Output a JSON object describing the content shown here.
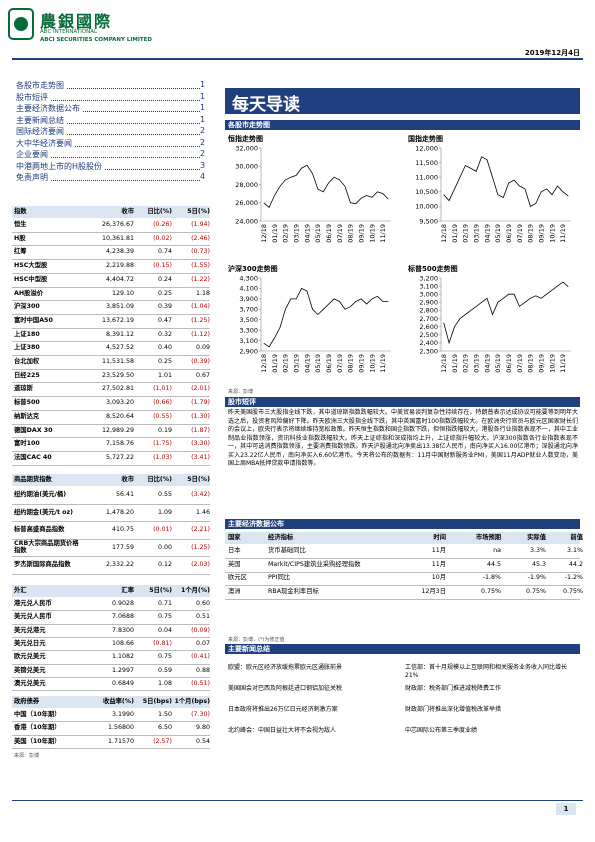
{
  "header": {
    "logo_cn": "農銀國際",
    "logo_en1": "ABC INTERNATIONAL",
    "logo_en2": "ABCI SECURITIES COMPANY LIMITED",
    "date": "2019年12月4日"
  },
  "toc": [
    {
      "title": "各股市走势图",
      "page": 1
    },
    {
      "title": "股市短评",
      "page": 1
    },
    {
      "title": "主要经济数据公布",
      "page": 1
    },
    {
      "title": "主要新闻总结",
      "page": 1
    },
    {
      "title": "国际经济要闻",
      "page": 2
    },
    {
      "title": "大中华经济要闻",
      "page": 2
    },
    {
      "title": "企业要闻",
      "page": 2
    },
    {
      "title": "中港两地上市的H股股份",
      "page": 3
    },
    {
      "title": "免责声明",
      "page": 4
    }
  ],
  "banner": "每天导读",
  "sections": {
    "charts": "各股市走势图",
    "comment": "股市短评",
    "econ": "主要经济数据公布",
    "news": "主要新闻总结"
  },
  "chart_source": "来源：彭博",
  "chart_data": [
    {
      "type": "line",
      "title": "恒指走势图",
      "categories": [
        "12/18",
        null,
        "01/19",
        null,
        "02/19",
        null,
        "03/19",
        null,
        "04/19",
        null,
        "05/19",
        null,
        "06/19",
        null,
        "07/19",
        null,
        "08/19",
        null,
        "09/19",
        null,
        "10/19",
        null,
        "11/19",
        null
      ],
      "values": [
        26000,
        25500,
        26800,
        27800,
        28500,
        28800,
        29000,
        29800,
        30100,
        29200,
        27500,
        27200,
        28200,
        28800,
        28500,
        27800,
        26000,
        25900,
        26500,
        26800,
        26600,
        27200,
        27000,
        26400
      ],
      "color": "#000000",
      "ylim": [
        24000,
        32000
      ],
      "yticks": [
        {
          "value": 24000,
          "label": "24,000"
        },
        {
          "value": 26000,
          "label": "26,000"
        },
        {
          "value": 28000,
          "label": "28,000"
        },
        {
          "value": 30000,
          "label": "30,000"
        },
        {
          "value": 32000,
          "label": "32,000"
        }
      ]
    },
    {
      "type": "line",
      "title": "国指走势图",
      "categories": [
        "12/18",
        null,
        "01/19",
        null,
        "02/19",
        null,
        "03/19",
        null,
        "04/19",
        null,
        "05/19",
        null,
        "06/19",
        null,
        "07/19",
        null,
        "08/19",
        null,
        "09/19",
        null,
        "10/19",
        null,
        "11/19",
        null
      ],
      "values": [
        10400,
        10200,
        10600,
        11000,
        11400,
        11300,
        11200,
        11700,
        11600,
        11000,
        10400,
        10300,
        10800,
        10900,
        10700,
        10600,
        10000,
        10100,
        10500,
        10600,
        10400,
        10700,
        10500,
        10360
      ],
      "color": "#000000",
      "ylim": [
        9500,
        12000
      ],
      "yticks": [
        {
          "value": 9500,
          "label": "9,500"
        },
        {
          "value": 10000,
          "label": "10,000"
        },
        {
          "value": 10500,
          "label": "10,500"
        },
        {
          "value": 11000,
          "label": "11,000"
        },
        {
          "value": 11500,
          "label": "11,500"
        },
        {
          "value": 12000,
          "label": "12,000"
        }
      ]
    },
    {
      "type": "line",
      "title": "沪深300走势图",
      "categories": [
        "12/18",
        null,
        "01/19",
        null,
        "02/19",
        null,
        "03/19",
        null,
        "04/19",
        null,
        "05/19",
        null,
        "06/19",
        null,
        "07/19",
        null,
        "08/19",
        null,
        "09/19",
        null,
        "10/19",
        null,
        "11/19",
        null
      ],
      "values": [
        3050,
        2980,
        3150,
        3350,
        3700,
        3900,
        3900,
        4100,
        4050,
        3700,
        3600,
        3700,
        3800,
        3900,
        3850,
        3700,
        3750,
        3850,
        3900,
        3800,
        3900,
        3950,
        3850,
        3850
      ],
      "color": "#000000",
      "ylim": [
        2900,
        4300
      ],
      "yticks": [
        {
          "value": 2900,
          "label": "2,900"
        },
        {
          "value": 3100,
          "label": "3,100"
        },
        {
          "value": 3300,
          "label": "3,300"
        },
        {
          "value": 3500,
          "label": "3,500"
        },
        {
          "value": 3700,
          "label": "3,700"
        },
        {
          "value": 3900,
          "label": "3,900"
        },
        {
          "value": 4100,
          "label": "4,100"
        },
        {
          "value": 4300,
          "label": "4,300"
        }
      ]
    },
    {
      "type": "line",
      "title": "标普500走势图",
      "categories": [
        "12/18",
        null,
        "01/19",
        null,
        "02/19",
        null,
        "03/19",
        null,
        "04/19",
        null,
        "05/19",
        null,
        "06/19",
        null,
        "07/19",
        null,
        "08/19",
        null,
        "09/19",
        null,
        "10/19",
        null,
        "11/19",
        null
      ],
      "values": [
        2650,
        2400,
        2600,
        2700,
        2750,
        2800,
        2850,
        2900,
        2950,
        2750,
        2900,
        2950,
        3000,
        3000,
        2850,
        2900,
        2950,
        2980,
        2950,
        3000,
        3050,
        3100,
        3150,
        3093
      ],
      "color": "#000000",
      "ylim": [
        2300,
        3200
      ],
      "yticks": [
        {
          "value": 2300,
          "label": "2,300"
        },
        {
          "value": 2400,
          "label": "2,400"
        },
        {
          "value": 2500,
          "label": "2,500"
        },
        {
          "value": 2600,
          "label": "2,600"
        },
        {
          "value": 2700,
          "label": "2,700"
        },
        {
          "value": 2800,
          "label": "2,800"
        },
        {
          "value": 2900,
          "label": "2,900"
        },
        {
          "value": 3000,
          "label": "3,000"
        },
        {
          "value": 3100,
          "label": "3,100"
        },
        {
          "value": 3200,
          "label": "3,200"
        }
      ]
    }
  ],
  "comment_text": "昨天美国股市三大股指全线下跌，其中道琼斯指数跌幅较大。中美贸易谈判复杂性持续存在，特朗普表示达成协议可能要等到明年大选之后，投资者风险偏好下降。昨天欧洲三大股指全线下跌，其中英国富时100指数跌幅较大。在欧洲央行官员与欧元区国家财长们的会议上，欧央行表示将继续维持宽松政策。昨天恒生指数和国企指数下跌，但恒指跌幅较大，港股各行业指数表现不一，其中工业制品业指数领涨，资讯科技业指数跌幅较大。昨天上证综指和深成指均上升，上证综指升幅较大。沪深300指数各行业指数表现不一，其中可选消费指数领涨，主要消费指数领跌。昨天沪股通北向净卖出13.38亿人民币，南向净买入16.00亿港币；深股通北向净买入23.22亿人民币，南向净买入6.60亿港币。今天将公布的数据有：11月中国财新服务业PMI，美国11月ADP就业人数变动，美国上周MBA抵押贷款申请指数等。",
  "tables": {
    "indices": {
      "columns": [
        "指数",
        "收市",
        "日比(%)",
        "5日(%)"
      ],
      "rows": [
        [
          "恒生",
          "26,376.67",
          "(0.26)",
          "(1.94)"
        ],
        [
          "H股",
          "10,361.81",
          "(0.02)",
          "(2.46)"
        ],
        [
          "红筹",
          "4,238.39",
          "0.74",
          "(0.73)"
        ],
        [
          "HSC大型股",
          "2,219.88",
          "(0.15)",
          "(1.55)"
        ],
        [
          "HSC中型股",
          "4,404.72",
          "0.24",
          "(1.22)"
        ],
        [
          "AH股溢价",
          "129.10",
          "0.25",
          "1.18"
        ],
        [
          "沪深300",
          "3,851.09",
          "0.39",
          "(1.04)"
        ],
        [
          "富时中国A50",
          "13,672.19",
          "0.47",
          "(1.25)"
        ],
        [
          "上证180",
          "8,391.12",
          "0.32",
          "(1.12)"
        ],
        [
          "上证380",
          "4,527.52",
          "0.40",
          "0.09"
        ],
        [
          "台北加权",
          "11,531.58",
          "0.25",
          "(0.39)"
        ],
        [
          "日经225",
          "23,529.50",
          "1.01",
          "0.67"
        ],
        [
          "道琼斯",
          "27,502.81",
          "(1.01)",
          "(2.01)"
        ],
        [
          "标普500",
          "3,093.20",
          "(0.66)",
          "(1.79)"
        ],
        [
          "纳斯达克",
          "8,520.64",
          "(0.55)",
          "(1.30)"
        ],
        [
          "德国DAX 30",
          "12,989.29",
          "0.19",
          "(1.87)"
        ],
        [
          "富时100",
          "7,158.76",
          "(1.75)",
          "(3.30)"
        ],
        [
          "法国CAC 40",
          "5,727.22",
          "(1.03)",
          "(3.41)"
        ]
      ]
    },
    "commodities": {
      "columns": [
        "商品期货指数",
        "收市",
        "日比(%)",
        "5日(%)"
      ],
      "rows": [
        [
          "纽约期油(美元/桶)",
          "56.41",
          "0.55",
          "(3.42)"
        ],
        [
          "纽约期金(美元/t oz)",
          "1,478.20",
          "1.09",
          "1.46"
        ],
        [
          "标普高盛商品指数",
          "410.75",
          "(0.01)",
          "(2.21)"
        ],
        [
          "CRB大宗商品期货价格指数",
          "177.59",
          "0.00",
          "(1.25)"
        ],
        [
          "罗杰斯国际商品指数",
          "2,332.22",
          "0.12",
          "(2.03)"
        ]
      ]
    },
    "fx": {
      "columns": [
        "外汇",
        "汇率",
        "5日(%)",
        "1个月(%)"
      ],
      "rows": [
        [
          "港元兑人民币",
          "0.9028",
          "0.71",
          "0.60"
        ],
        [
          "美元兑人民币",
          "7.0688",
          "0.75",
          "0.51"
        ],
        [
          "美元兑港元",
          "7.8300",
          "0.04",
          "(0.09)"
        ],
        [
          "美元兑日元",
          "108.66",
          "(0.81)",
          "0.07"
        ],
        [
          "欧元兑美元",
          "1.1082",
          "0.75",
          "(0.41)"
        ],
        [
          "英镑兑美元",
          "1.2997",
          "0.59",
          "0.88"
        ],
        [
          "澳元兑美元",
          "0.6849",
          "1.08",
          "(0.51)"
        ]
      ]
    },
    "bonds": {
      "columns": [
        "政府债券",
        "收益率(%)",
        "5日(bps)",
        "1个月(bps)"
      ],
      "rows": [
        [
          "中国（10年期）",
          "3.1990",
          "1.50",
          "(7.30)"
        ],
        [
          "香港（10年期）",
          "1.56800",
          "6.50",
          "9.80"
        ],
        [
          "美国（10年期）",
          "1.71570",
          "(2.57)",
          "0.54"
        ]
      ]
    }
  },
  "tables_source": "来源：彭博",
  "econ": {
    "columns": [
      "国家",
      "经济指标",
      "时间",
      "市场预期",
      "实际值",
      "前值"
    ],
    "rows": [
      [
        "日本",
        "货币基础同比",
        "11月",
        "na",
        "3.3%",
        "3.1%"
      ],
      [
        "英国",
        "Markit/CIPS建筑业采购经理指数",
        "11月",
        "44.5",
        "45.3",
        "44.2"
      ],
      [
        "欧元区",
        "PPI同比",
        "10月",
        "-1.8%",
        "-1.9%",
        "-1.2%"
      ],
      [
        "澳洲",
        "RBA现金利率目标",
        "12月3日",
        "0.75%",
        "0.75%",
        "0.75%"
      ]
    ],
    "source": "来源：彭博，(*)为修正值"
  },
  "news": {
    "left": [
      "欧盟：欧元区经济放缓拖累欧元区通胀前景",
      "美国国会对巴西及阿根廷进口钢铝加征关税",
      "日本政府将推出26万亿日元经济刺激方案",
      "北约峰会：中国日益壮大将不会视为敌人"
    ],
    "right": [
      "工信部：首十月规模以上互联网和相关服务业务收入同比增长21%",
      "财政部：税务部门推进减税降费工作",
      "财政部门将推出深化增值税改革举措",
      "中芯国际公布第三季度业绩"
    ]
  },
  "page_number": 1
}
